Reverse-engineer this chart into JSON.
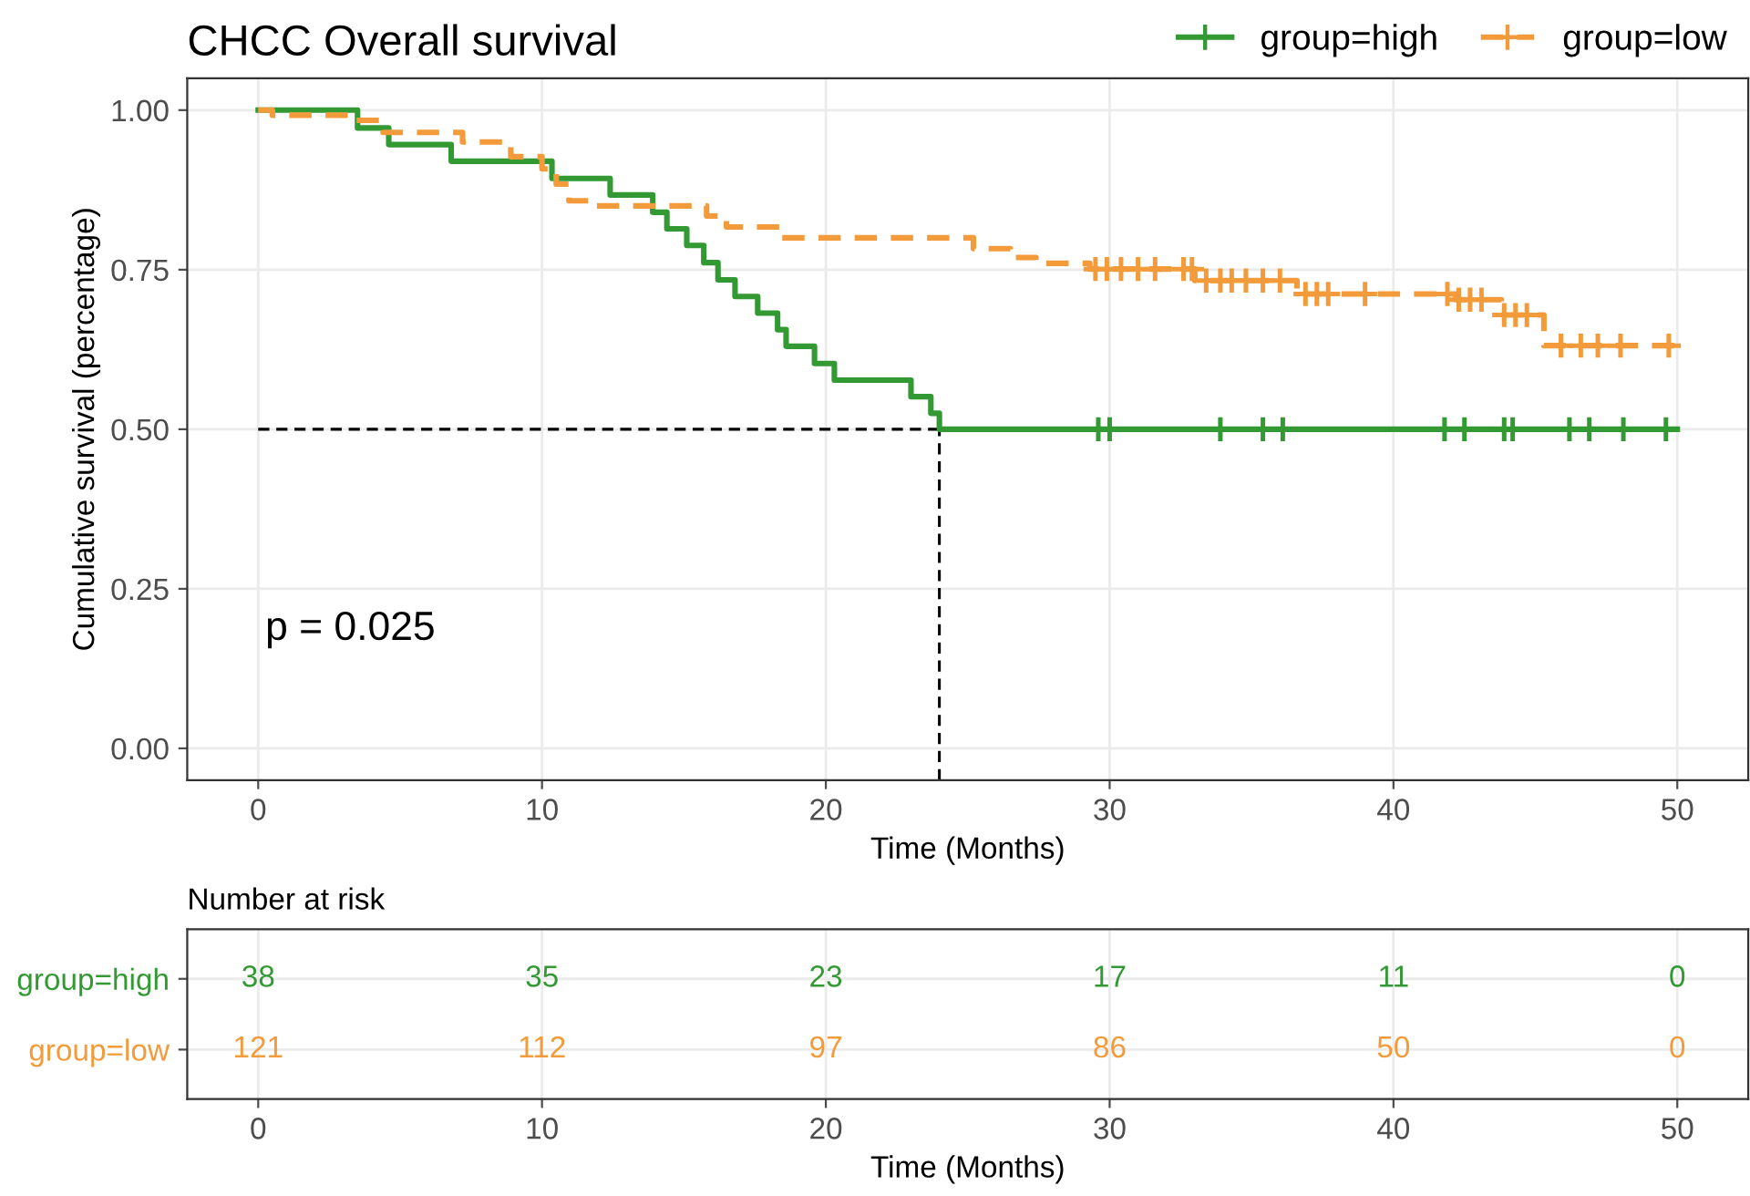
{
  "chart_data": [
    {
      "type": "step",
      "title": "CHCC Overall survival",
      "xlabel": "Time (Months)",
      "ylabel": "Cumulative survival (percentage)",
      "xlim": [
        -2.5,
        52.5
      ],
      "xticks": [
        0,
        10,
        20,
        30,
        40,
        50
      ],
      "ylim": [
        -0.05,
        1.05
      ],
      "yticks": [
        {
          "value": 1.0,
          "label": "1.00"
        },
        {
          "value": 0.75,
          "label": "0.75"
        },
        {
          "value": 0.5,
          "label": "0.50"
        },
        {
          "value": 0.25,
          "label": "0.25"
        },
        {
          "value": 0.0,
          "label": "0.00"
        }
      ],
      "grid": true,
      "legend": "top right",
      "annotations": [
        "p = 0.025"
      ],
      "ref_lines": [
        {
          "axis": "y",
          "value": 0.5,
          "line_style": "dashed",
          "color": "#000000"
        },
        {
          "axis": "x",
          "value": 24.0,
          "line_style": "dashed",
          "color": "#000000"
        }
      ],
      "series": [
        {
          "name": "group=high",
          "color": "#339933",
          "line_style": "solid",
          "x": [
            0,
            3.5,
            4.6,
            6.8,
            10.35,
            12.4,
            13.9,
            14.4,
            15.1,
            15.7,
            16.2,
            16.8,
            17.6,
            18.3,
            18.6,
            19.6,
            20.3,
            23.0,
            23.7,
            24.0,
            50
          ],
          "values": [
            1.0,
            0.972,
            0.946,
            0.92,
            0.893,
            0.867,
            0.84,
            0.814,
            0.788,
            0.761,
            0.734,
            0.708,
            0.682,
            0.656,
            0.63,
            0.603,
            0.577,
            0.551,
            0.525,
            0.5,
            0.5
          ]
        },
        {
          "name": "group=low",
          "color": "#f39a3a",
          "line_style": "dashed",
          "x": [
            0,
            0.5,
            3.3,
            4.4,
            7.2,
            8.9,
            10.0,
            10.5,
            10.95,
            11.9,
            15.8,
            16.5,
            18.4,
            25.2,
            26.5,
            27.4,
            29.3,
            33.0,
            36.6,
            42.2,
            43.8,
            45.3,
            50
          ],
          "values": [
            1.0,
            0.992,
            0.984,
            0.965,
            0.95,
            0.927,
            0.908,
            0.884,
            0.858,
            0.85,
            0.834,
            0.817,
            0.8,
            0.783,
            0.769,
            0.76,
            0.751,
            0.733,
            0.712,
            0.703,
            0.679,
            0.631,
            0.631
          ]
        },
        {
          "type": "scatter",
          "color": "#339933",
          "marker": "cross",
          "x": [
            29.6,
            30.0,
            33.9,
            35.4,
            36.1,
            41.8,
            42.5,
            43.9,
            44.2,
            46.2,
            46.9,
            48.1,
            49.6
          ],
          "values": [
            0.5,
            0.5,
            0.5,
            0.5,
            0.5,
            0.5,
            0.5,
            0.5,
            0.5,
            0.5,
            0.5,
            0.5,
            0.5
          ]
        },
        {
          "type": "scatter",
          "color": "#f39a3a",
          "marker": "cross",
          "x": [
            29.5,
            29.9,
            30.4,
            31.0,
            31.6,
            32.6,
            32.9,
            33.4,
            33.9,
            34.3,
            34.8,
            35.4,
            36.0,
            36.9,
            37.3,
            37.7,
            39.0,
            41.9,
            42.3,
            42.7,
            43.1,
            43.9,
            44.3,
            44.7,
            45.9,
            46.6,
            47.2,
            48.0,
            49.7
          ],
          "values": [
            0.751,
            0.751,
            0.751,
            0.751,
            0.751,
            0.751,
            0.751,
            0.733,
            0.733,
            0.733,
            0.733,
            0.733,
            0.733,
            0.712,
            0.712,
            0.712,
            0.712,
            0.712,
            0.703,
            0.703,
            0.703,
            0.679,
            0.679,
            0.679,
            0.631,
            0.631,
            0.631,
            0.631,
            0.631
          ]
        }
      ]
    },
    {
      "type": "heatmap",
      "title": "Number at risk",
      "xlabel": "Time (Months)",
      "grid": true,
      "data_labels": true,
      "categories": [
        "0",
        "10",
        "20",
        "30",
        "40",
        "50"
      ],
      "y_categories": [
        "group=high",
        "group=low"
      ],
      "colors": [
        "#339933",
        "#f39a3a"
      ],
      "cells": [
        [
          38,
          35,
          23,
          17,
          11,
          0
        ],
        [
          121,
          112,
          97,
          86,
          50,
          0
        ]
      ]
    }
  ]
}
